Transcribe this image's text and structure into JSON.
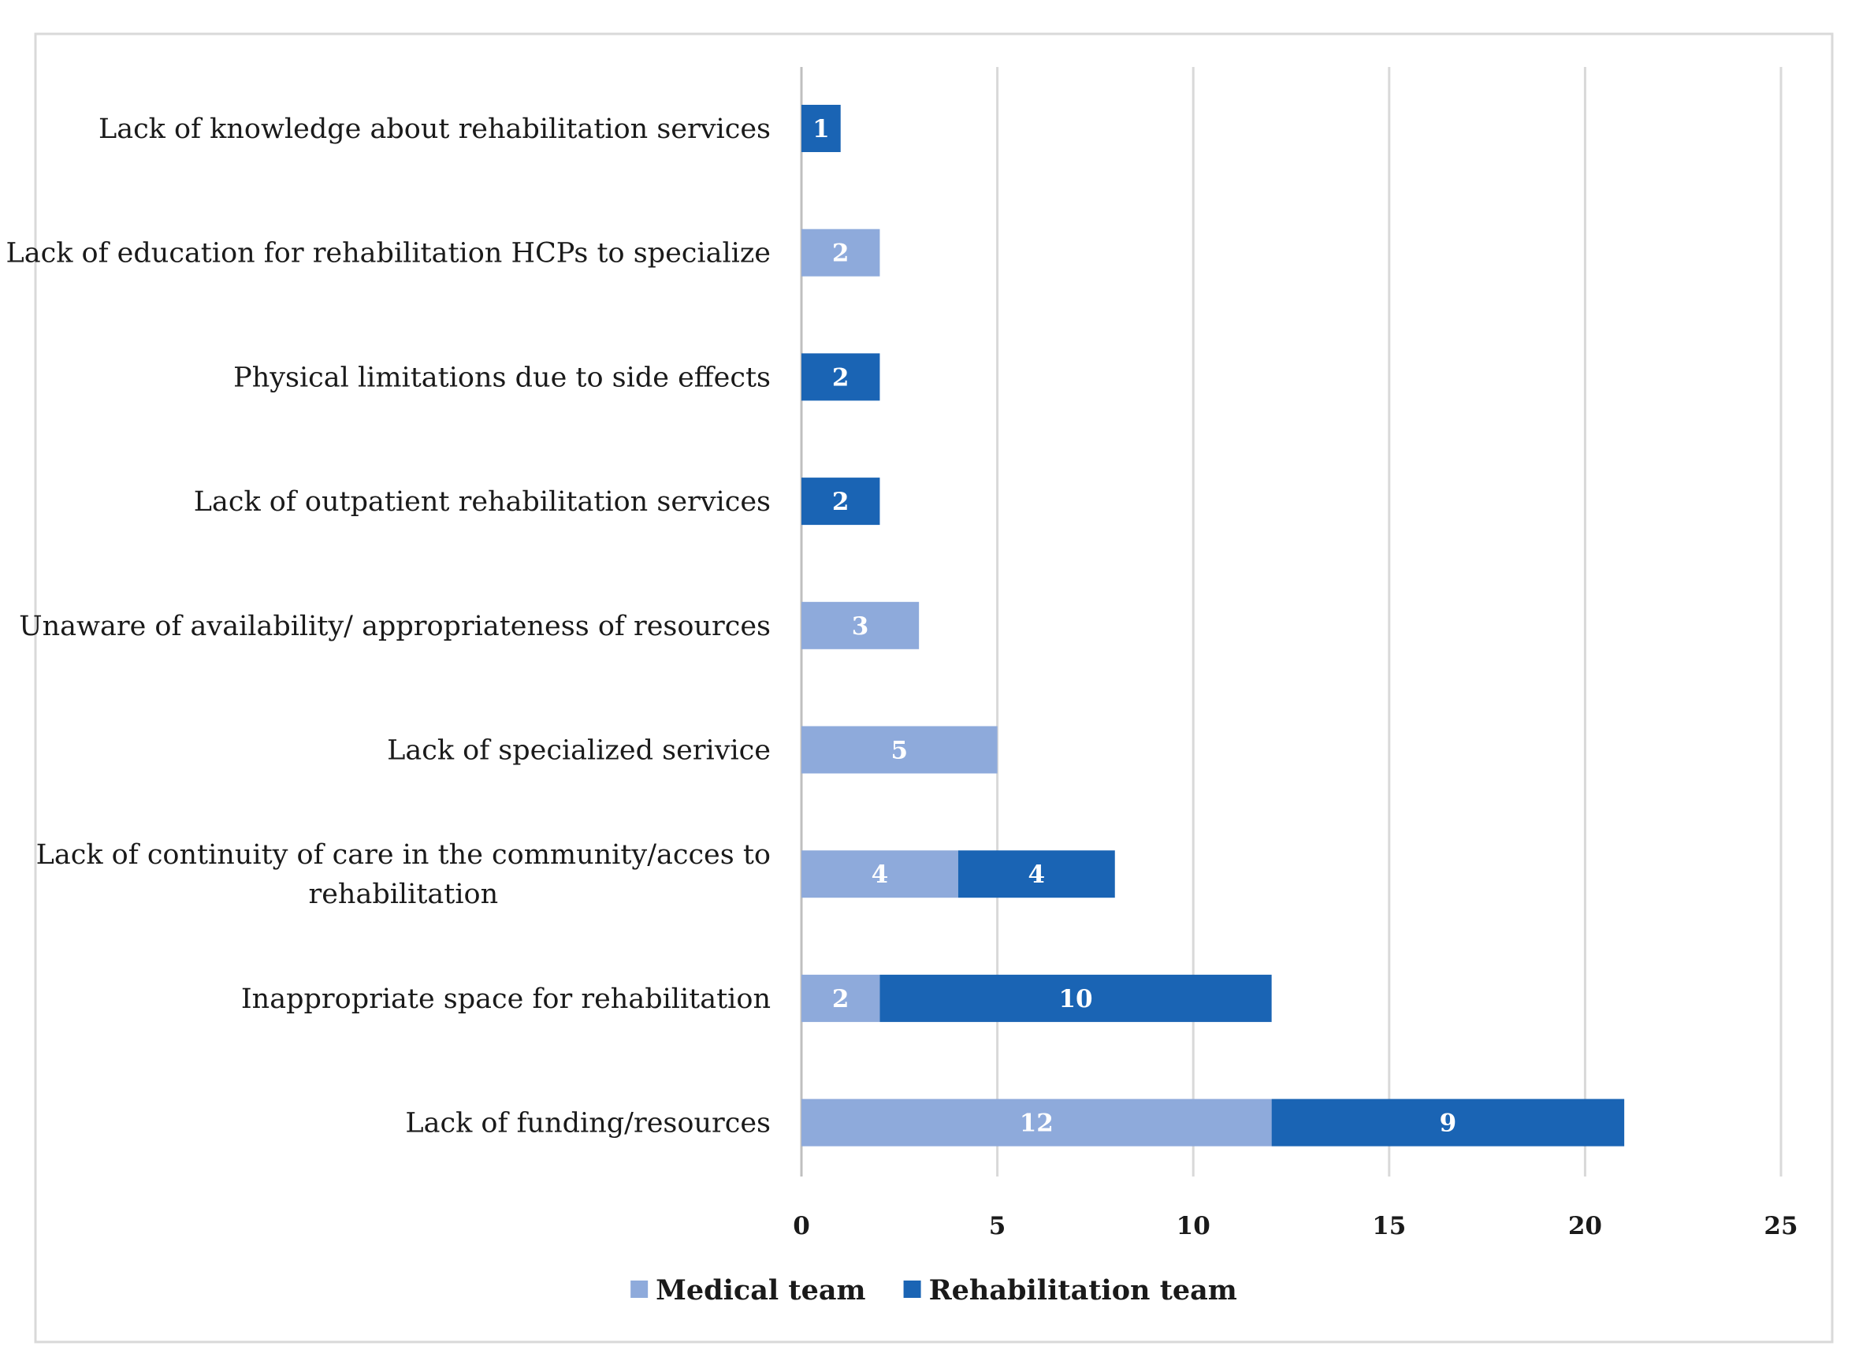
{
  "chart_data": {
    "type": "bar",
    "orientation": "horizontal",
    "stacked": true,
    "title": "",
    "xlabel": "",
    "ylabel": "",
    "xlim": [
      0,
      25
    ],
    "x_ticks": [
      "0",
      "5",
      "10",
      "15",
      "20",
      "25"
    ],
    "grid": true,
    "legend_position": "bottom",
    "categories": [
      [
        "Lack of knowledge about rehabilitation services"
      ],
      [
        "Lack of education for rehabilitation HCPs to specialize"
      ],
      [
        "Physical limitations due to side effects"
      ],
      [
        "Lack of outpatient rehabilitation services"
      ],
      [
        "Unaware of availability/ appropriateness of resources"
      ],
      [
        "Lack of specialized serivice"
      ],
      [
        "Lack of continuity of care in the community/acces to",
        "rehabilitation"
      ],
      [
        "Inappropriate space for rehabilitation"
      ],
      [
        "Lack of funding/resources"
      ]
    ],
    "series": [
      {
        "name": "Medical team",
        "color": "#8eaadb",
        "values": [
          0,
          2,
          0,
          0,
          3,
          5,
          4,
          2,
          12
        ]
      },
      {
        "name": "Rehabilitation team",
        "color": "#1a64b4",
        "values": [
          1,
          0,
          2,
          2,
          0,
          0,
          4,
          10,
          9
        ]
      }
    ]
  },
  "colors": {
    "grid": "#d9d9d9",
    "frame": "#d9d9d9",
    "axis": "#bfbfbf"
  }
}
